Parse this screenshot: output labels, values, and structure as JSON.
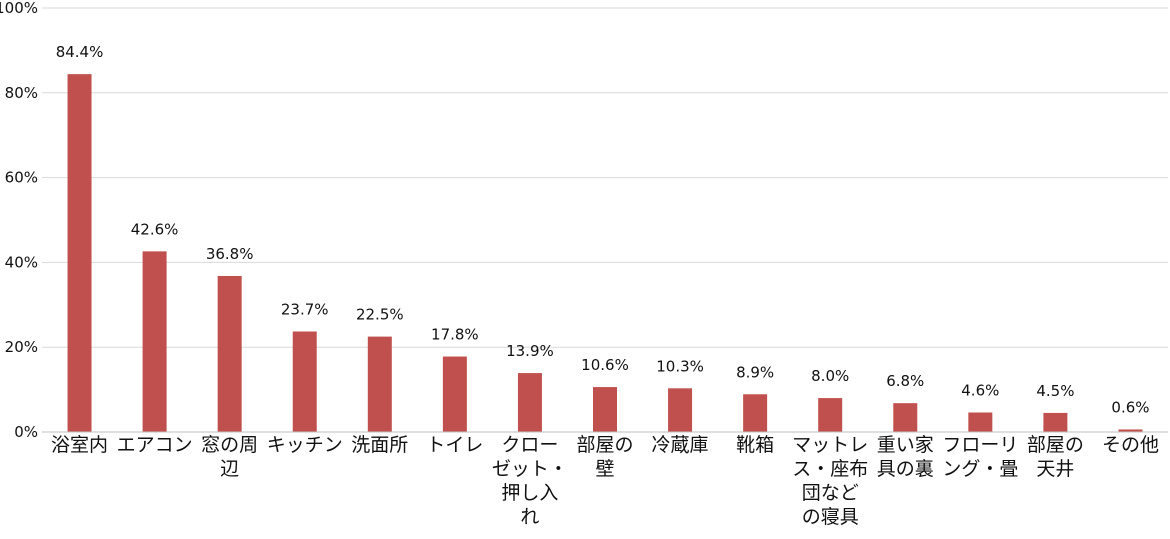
{
  "chart_data": {
    "type": "bar",
    "categories": [
      "浴室内",
      "エアコン",
      "窓の周辺",
      "キッチン",
      "洗面所",
      "トイレ",
      "クローゼット・押し入れ",
      "部屋の壁",
      "冷蔵庫",
      "靴箱",
      "マットレス・座布団などの寝具",
      "重い家具の裏",
      "フローリング・畳",
      "部屋の天井",
      "その他"
    ],
    "category_lines": [
      [
        "浴室内"
      ],
      [
        "エアコン"
      ],
      [
        "窓の周",
        "辺"
      ],
      [
        "キッチン"
      ],
      [
        "洗面所"
      ],
      [
        "トイレ"
      ],
      [
        "クロー",
        "ゼット・",
        "押し入",
        "れ"
      ],
      [
        "部屋の",
        "壁"
      ],
      [
        "冷蔵庫"
      ],
      [
        "靴箱"
      ],
      [
        "マットレ",
        "ス・座布",
        "団など",
        "の寝具"
      ],
      [
        "重い家",
        "具の裏"
      ],
      [
        "フローリ",
        "ング・畳"
      ],
      [
        "部屋の",
        "天井"
      ],
      [
        "その他"
      ]
    ],
    "values": [
      84.4,
      42.6,
      36.8,
      23.7,
      22.5,
      17.8,
      13.9,
      10.6,
      10.3,
      8.9,
      8.0,
      6.8,
      4.6,
      4.5,
      0.6
    ],
    "data_labels": [
      "84.4%",
      "42.6%",
      "36.8%",
      "23.7%",
      "22.5%",
      "17.8%",
      "13.9%",
      "10.6%",
      "10.3%",
      "8.9%",
      "8.0%",
      "6.8%",
      "4.6%",
      "4.5%",
      "0.6%"
    ],
    "y_ticks": [
      0,
      20,
      40,
      60,
      80,
      100
    ],
    "y_tick_labels": [
      "0%",
      "20%",
      "40%",
      "60%",
      "80%",
      "100%"
    ],
    "ylim": [
      0,
      100
    ],
    "grid": true,
    "legend": "none",
    "title": "",
    "xlabel": "",
    "ylabel": "",
    "bar_color": "#c0504d"
  }
}
